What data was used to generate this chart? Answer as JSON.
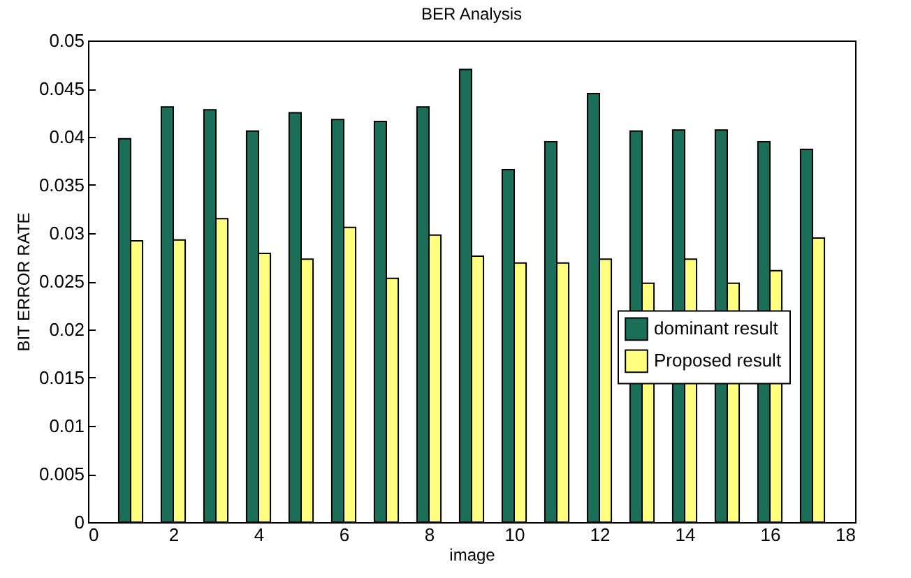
{
  "chart_data": {
    "type": "bar",
    "title": "BER Analysis",
    "xlabel": "image",
    "ylabel": "BIT ERROR RATE",
    "x": [
      1,
      2,
      3,
      4,
      5,
      6,
      7,
      8,
      9,
      10,
      11,
      12,
      13,
      14,
      15,
      16,
      17
    ],
    "series": [
      {
        "name": "dominant result",
        "color": "#1b6e58",
        "values": [
          0.0398,
          0.0431,
          0.0428,
          0.0406,
          0.0425,
          0.0418,
          0.0416,
          0.0431,
          0.047,
          0.0366,
          0.0395,
          0.0445,
          0.0406,
          0.0407,
          0.0407,
          0.0395,
          0.0387
        ]
      },
      {
        "name": "Proposed result",
        "color": "#ffff80",
        "values": [
          0.0292,
          0.0293,
          0.0315,
          0.0279,
          0.0273,
          0.0306,
          0.0253,
          0.0298,
          0.0276,
          0.0269,
          0.0269,
          0.0273,
          0.0248,
          0.0273,
          0.0248,
          0.0261,
          0.0295
        ]
      }
    ],
    "xlim": [
      0,
      18
    ],
    "xticks": [
      0,
      2,
      4,
      6,
      8,
      10,
      12,
      14,
      16,
      18
    ],
    "ylim": [
      0,
      0.05
    ],
    "yticks": [
      0,
      0.005,
      0.01,
      0.015,
      0.02,
      0.025,
      0.03,
      0.035,
      0.04,
      0.045,
      0.05
    ],
    "grid": false,
    "legend": "right"
  }
}
